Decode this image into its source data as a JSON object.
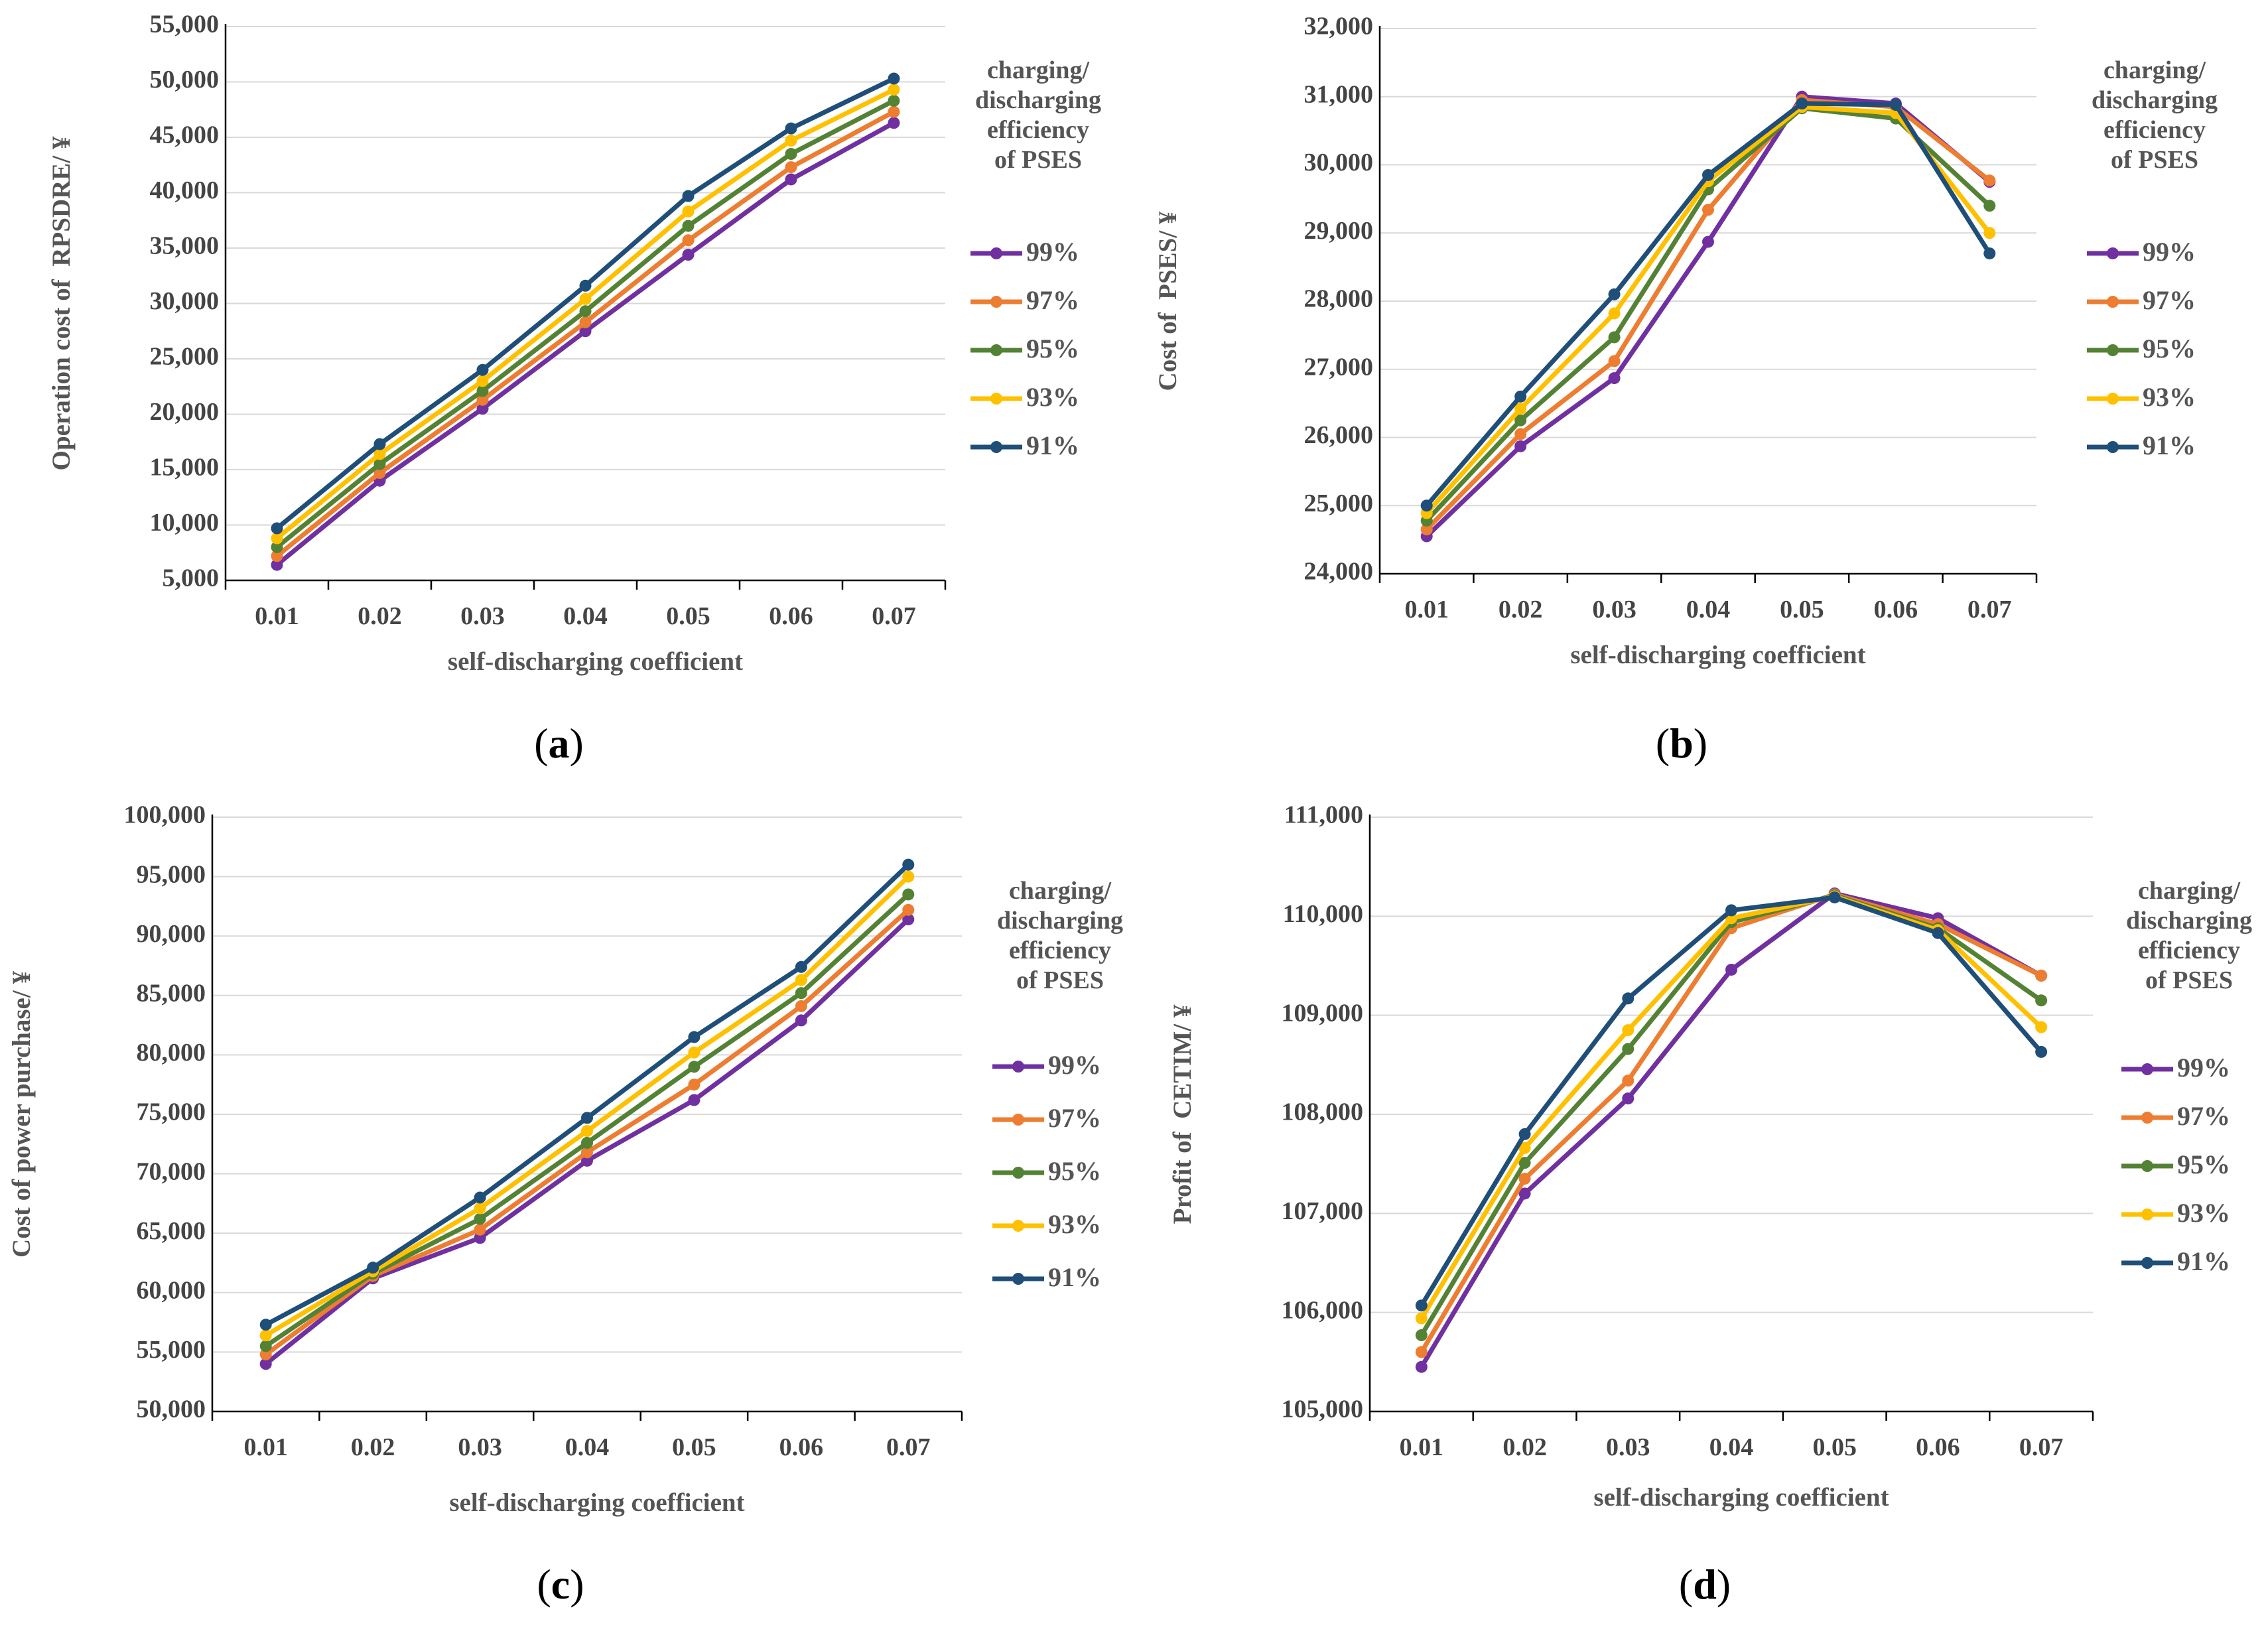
{
  "figure": {
    "x_ticks": [
      "0.01",
      "0.02",
      "0.03",
      "0.04",
      "0.05",
      "0.06",
      "0.07"
    ],
    "legend_title": [
      "charging/",
      "discharging",
      "efficiency",
      "of PSES"
    ],
    "series_names": [
      "99%",
      "97%",
      "95%",
      "93%",
      "91%"
    ],
    "series_colors": [
      "#7030a0",
      "#ed7d31",
      "#548235",
      "#ffc000",
      "#1f4e79"
    ]
  },
  "chart_data": [
    {
      "type": "line",
      "panel": "a",
      "panel_label": "a",
      "title": "",
      "xlabel": "self-discharging coefficient",
      "ylabel": "Operation cost of  RPSDRE/ ¥",
      "categories": [
        "0.01",
        "0.02",
        "0.03",
        "0.04",
        "0.05",
        "0.06",
        "0.07"
      ],
      "ylim": [
        5000,
        55000
      ],
      "ystep": 5000,
      "y_tick_labels": [
        "5,000",
        "10,000",
        "15,000",
        "20,000",
        "25,000",
        "30,000",
        "35,000",
        "40,000",
        "45,000",
        "50,000",
        "55,000"
      ],
      "series": [
        {
          "name": "99%",
          "values": [
            6400,
            14000,
            20500,
            27500,
            34400,
            41200,
            46300
          ]
        },
        {
          "name": "97%",
          "values": [
            7200,
            14700,
            21300,
            28300,
            35700,
            42300,
            47300
          ]
        },
        {
          "name": "95%",
          "values": [
            8000,
            15500,
            22100,
            29300,
            37000,
            43500,
            48300
          ]
        },
        {
          "name": "93%",
          "values": [
            8800,
            16400,
            23000,
            30400,
            38300,
            44700,
            49300
          ]
        },
        {
          "name": "91%",
          "values": [
            9700,
            17300,
            24000,
            31600,
            39700,
            45800,
            50300
          ]
        }
      ]
    },
    {
      "type": "line",
      "panel": "b",
      "panel_label": "b",
      "title": "",
      "xlabel": "self-discharging coefficient",
      "ylabel": "Cost of  PSES/ ¥",
      "categories": [
        "0.01",
        "0.02",
        "0.03",
        "0.04",
        "0.05",
        "0.06",
        "0.07"
      ],
      "ylim": [
        24000,
        32000
      ],
      "ystep": 1000,
      "y_tick_labels": [
        "24,000",
        "25,000",
        "26,000",
        "27,000",
        "28,000",
        "29,000",
        "30,000",
        "31,000",
        "32,000"
      ],
      "series": [
        {
          "name": "99%",
          "values": [
            24550,
            25870,
            26870,
            28870,
            31000,
            30900,
            29750
          ]
        },
        {
          "name": "97%",
          "values": [
            24650,
            26050,
            27120,
            29340,
            30950,
            30850,
            29770
          ]
        },
        {
          "name": "95%",
          "values": [
            24780,
            26250,
            27470,
            29640,
            30830,
            30680,
            29400
          ]
        },
        {
          "name": "93%",
          "values": [
            24890,
            26420,
            27820,
            29760,
            30850,
            30760,
            29000
          ]
        },
        {
          "name": "91%",
          "values": [
            25000,
            26600,
            28100,
            29850,
            30900,
            30880,
            28700
          ]
        }
      ]
    },
    {
      "type": "line",
      "panel": "c",
      "panel_label": "c",
      "title": "",
      "xlabel": "self-discharging coefficient",
      "ylabel": "Cost of power purchase/ ¥",
      "categories": [
        "0.01",
        "0.02",
        "0.03",
        "0.04",
        "0.05",
        "0.06",
        "0.07"
      ],
      "ylim": [
        50000,
        100000
      ],
      "ystep": 5000,
      "y_tick_labels": [
        "50,000",
        "55,000",
        "60,000",
        "65,000",
        "70,000",
        "75,000",
        "80,000",
        "85,000",
        "90,000",
        "95,000",
        "100,000"
      ],
      "series": [
        {
          "name": "99%",
          "values": [
            54000,
            61200,
            64600,
            71100,
            76200,
            82900,
            91400
          ]
        },
        {
          "name": "97%",
          "values": [
            54800,
            61400,
            65300,
            71800,
            77500,
            84100,
            92200
          ]
        },
        {
          "name": "95%",
          "values": [
            55500,
            61600,
            66200,
            72600,
            79000,
            85200,
            93500
          ]
        },
        {
          "name": "93%",
          "values": [
            56400,
            61800,
            67100,
            73600,
            80200,
            86300,
            95000
          ]
        },
        {
          "name": "91%",
          "values": [
            57300,
            62100,
            68000,
            74700,
            81500,
            87400,
            96000
          ]
        }
      ]
    },
    {
      "type": "line",
      "panel": "d",
      "panel_label": "d",
      "title": "",
      "xlabel": "self-discharging coefficient",
      "ylabel": "Profit of  CETIM/ ¥",
      "categories": [
        "0.01",
        "0.02",
        "0.03",
        "0.04",
        "0.05",
        "0.06",
        "0.07"
      ],
      "ylim": [
        105000,
        111000
      ],
      "ystep": 1000,
      "y_tick_labels": [
        "105,000",
        "106,000",
        "107,000",
        "108,000",
        "109,000",
        "110,000",
        "111,000"
      ],
      "series": [
        {
          "name": "99%",
          "values": [
            105450,
            107200,
            108160,
            109460,
            110230,
            109980,
            109400
          ]
        },
        {
          "name": "97%",
          "values": [
            105600,
            107350,
            108340,
            109880,
            110220,
            109920,
            109400
          ]
        },
        {
          "name": "95%",
          "values": [
            105770,
            107510,
            108660,
            109940,
            110210,
            109880,
            109150
          ]
        },
        {
          "name": "93%",
          "values": [
            105940,
            107660,
            108850,
            109980,
            110200,
            109860,
            108880
          ]
        },
        {
          "name": "91%",
          "values": [
            106070,
            107800,
            109170,
            110060,
            110190,
            109830,
            108630
          ]
        }
      ]
    }
  ]
}
